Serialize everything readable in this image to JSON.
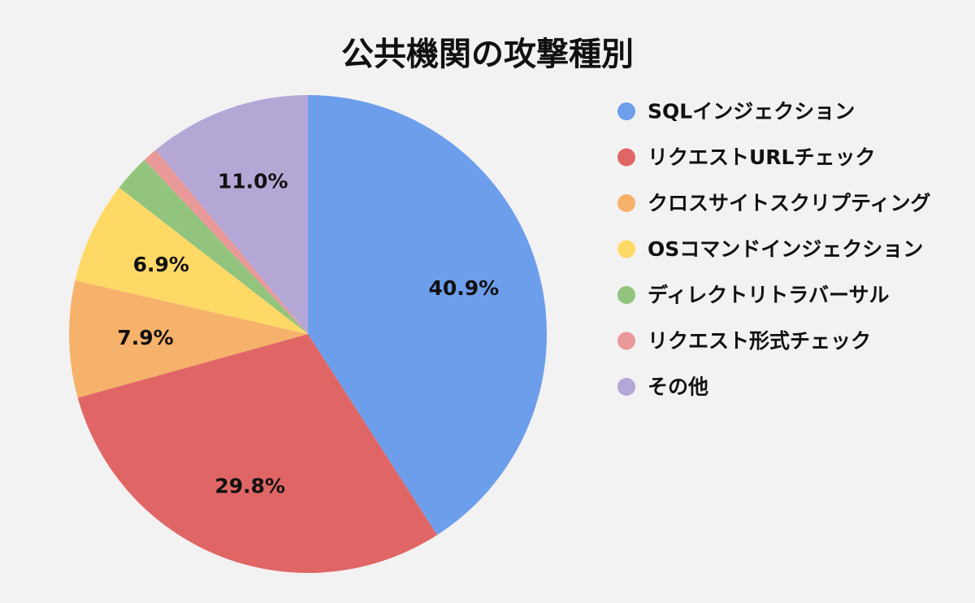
{
  "chart_data": {
    "type": "pie",
    "title": "公共機関の攻撃種別",
    "legend_position": "right",
    "start_angle_deg": 0,
    "direction": "clockwise",
    "slices": [
      {
        "label": "SQLインジェクション",
        "value": 40.9,
        "display": "40.9%",
        "color": "#6d9eeb"
      },
      {
        "label": "リクエストURLチェック",
        "value": 29.8,
        "display": "29.8%",
        "color": "#e06666"
      },
      {
        "label": "クロスサイトスクリプティング",
        "value": 7.9,
        "display": "7.9%",
        "color": "#f6b26b"
      },
      {
        "label": "OSコマンドインジェクション",
        "value": 6.9,
        "display": "6.9%",
        "color": "#ffd966"
      },
      {
        "label": "ディレクトリトラバーサル",
        "value": 2.5,
        "display": "",
        "color": "#93c47d"
      },
      {
        "label": "リクエスト形式チェック",
        "value": 1.0,
        "display": "",
        "color": "#ea9999"
      },
      {
        "label": "その他",
        "value": 11.0,
        "display": "11.0%",
        "color": "#b4a7d6"
      }
    ]
  }
}
